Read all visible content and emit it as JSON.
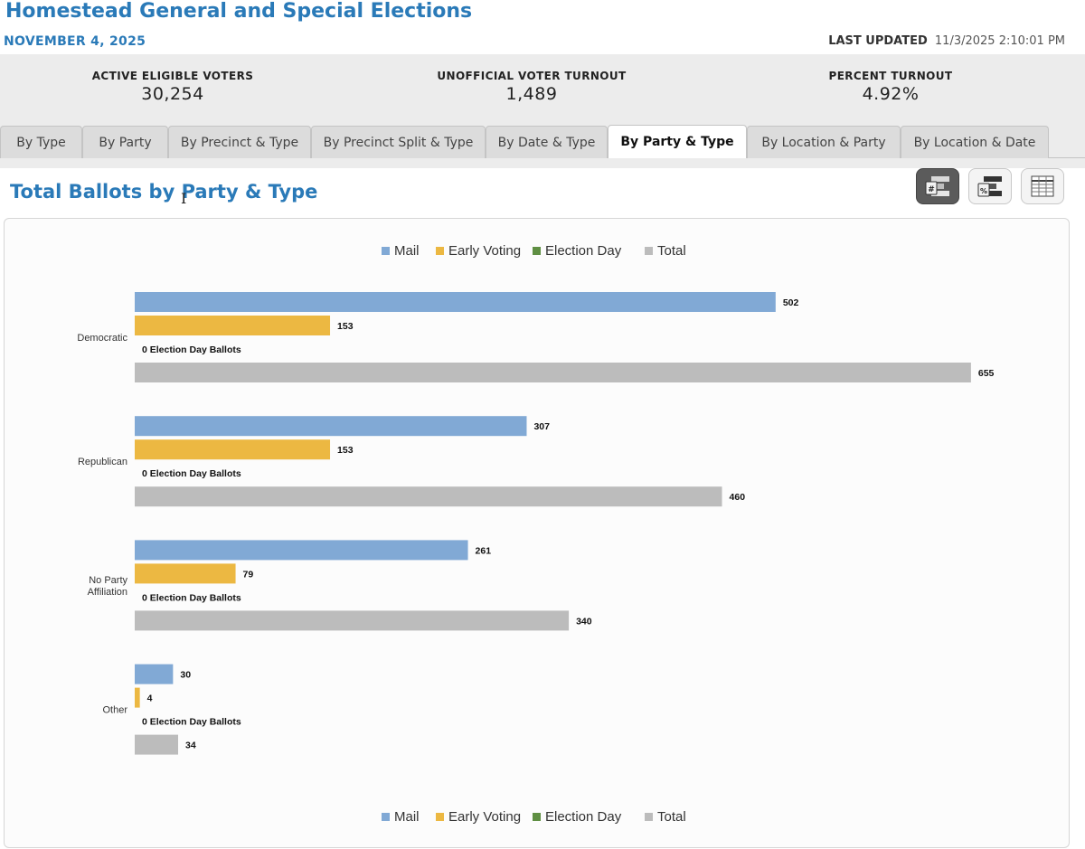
{
  "header": {
    "title": "Homestead General and Special Elections",
    "date": "NOVEMBER 4, 2025",
    "last_updated_label": "LAST UPDATED",
    "last_updated_value": "11/3/2025 2:10:01 PM"
  },
  "stats": [
    {
      "label": "ACTIVE ELIGIBLE VOTERS",
      "value": "30,254"
    },
    {
      "label": "UNOFFICIAL VOTER TURNOUT",
      "value": "1,489"
    },
    {
      "label": "PERCENT TURNOUT",
      "value": "4.92%"
    }
  ],
  "tabs": [
    {
      "label": "By Type"
    },
    {
      "label": "By Party"
    },
    {
      "label": "By Precinct & Type"
    },
    {
      "label": "By Precinct Split & Type"
    },
    {
      "label": "By Date & Type"
    },
    {
      "label": "By Party & Type",
      "active": true
    },
    {
      "label": "By Location & Party"
    },
    {
      "label": "By Location & Date"
    }
  ],
  "section": {
    "title": "Total Ballots by Party & Type"
  },
  "toolbar": {
    "buttons": [
      {
        "icon": "count-chart-icon",
        "active": true
      },
      {
        "icon": "percent-chart-icon",
        "active": false
      },
      {
        "icon": "table-view-icon",
        "active": false
      }
    ]
  },
  "colors": {
    "accent": "#2a7ab8",
    "mail": "#81a9d5",
    "early_voting": "#ecb842",
    "election_day": "#5f8f43",
    "total": "#bcbcbc"
  },
  "chart_data": {
    "type": "bar",
    "orientation": "horizontal",
    "categories": [
      "Democratic",
      "Republican",
      "No Party Affiliation",
      "Other"
    ],
    "series": [
      {
        "name": "Mail",
        "values": [
          502,
          307,
          261,
          30
        ]
      },
      {
        "name": "Early Voting",
        "values": [
          153,
          153,
          79,
          4
        ]
      },
      {
        "name": "Election Day",
        "values": [
          0,
          0,
          0,
          0
        ]
      },
      {
        "name": "Total",
        "values": [
          655,
          460,
          340,
          34
        ]
      }
    ],
    "zero_value_label": "0 Election Day Ballots",
    "legend_position": "top and bottom",
    "xlim": [
      0,
      700
    ],
    "grid": false
  }
}
